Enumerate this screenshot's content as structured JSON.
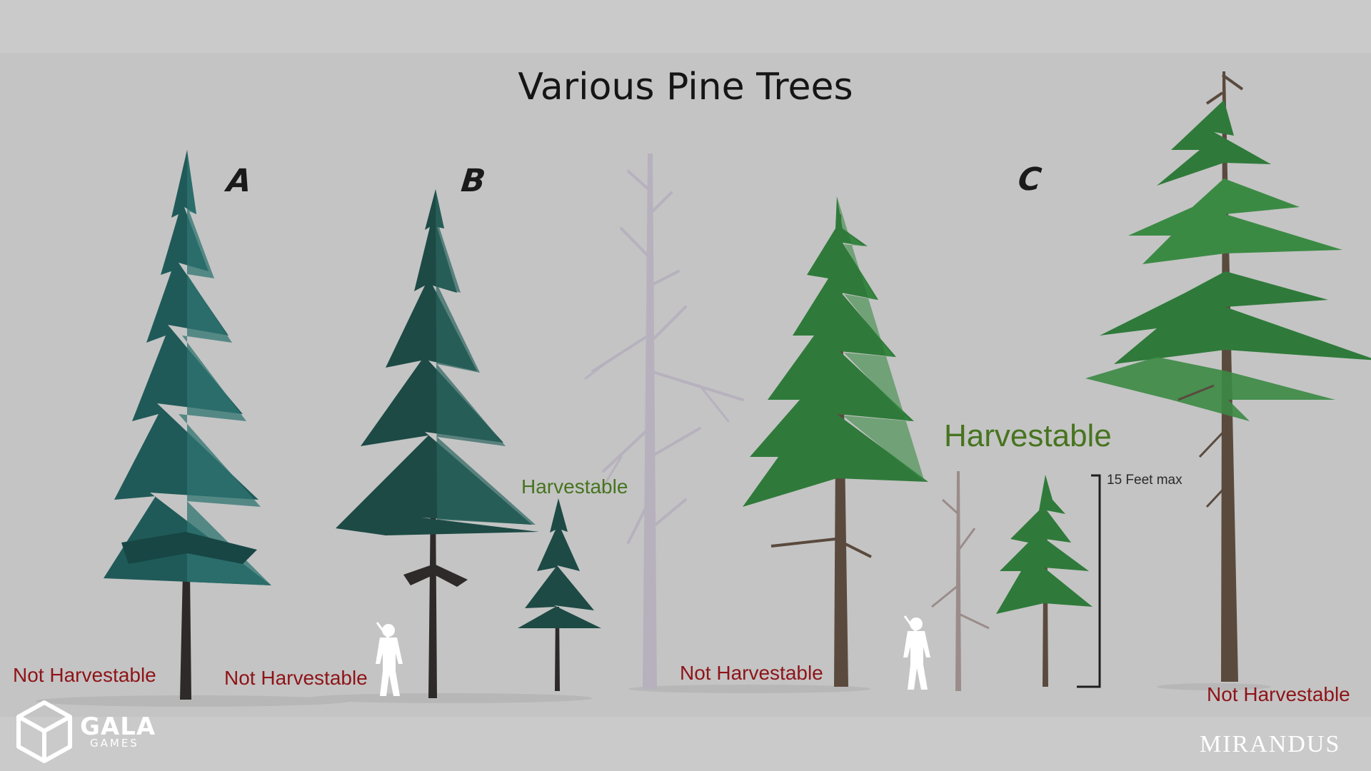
{
  "title": "Various Pine Trees",
  "section_letters": {
    "a": "A",
    "b": "B",
    "c": "C"
  },
  "labels": {
    "tree_a": "Not Harvestable",
    "tree_b": "Not Harvestable",
    "sapling_b": "Harvestable",
    "dead_pine": "Not Harvestable",
    "group_c_small": "Harvestable",
    "tree_c": "Not Harvestable"
  },
  "scale_bar": {
    "label": "15 Feet max"
  },
  "logo": {
    "name": "GALA",
    "sub": "GAMES"
  },
  "brand": "MIRANDUS",
  "colors": {
    "not_harvestable": "#8e1418",
    "harvestable": "#47741f",
    "type_a_foliage": "#1f5a58",
    "type_b_foliage": "#1d4a45",
    "type_c_foliage": "#2f7a3a",
    "dead_wood": "#b7b1be"
  }
}
